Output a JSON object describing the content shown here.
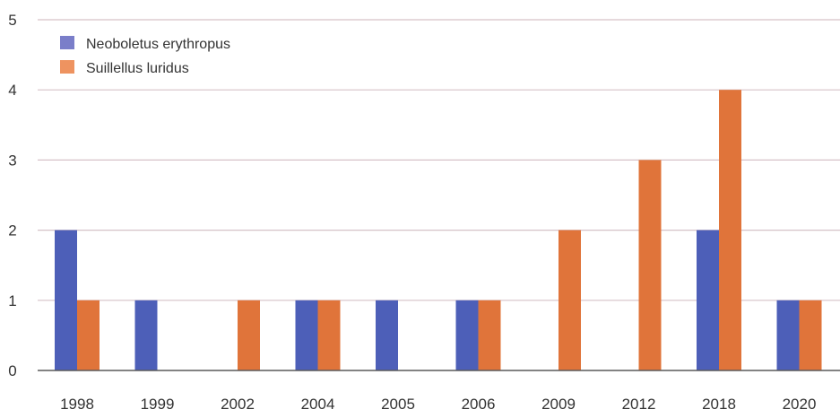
{
  "chart_data": {
    "type": "bar",
    "categories": [
      "1998",
      "1999",
      "2002",
      "2004",
      "2005",
      "2006",
      "2009",
      "2012",
      "2018",
      "2020"
    ],
    "series": [
      {
        "name": "Neoboletus erythropus",
        "color": "#4d5fb8",
        "values": [
          2,
          1,
          0,
          1,
          1,
          1,
          0,
          0,
          2,
          1
        ]
      },
      {
        "name": "Suillellus luridus",
        "color": "#e0743a",
        "values": [
          1,
          0,
          1,
          1,
          0,
          1,
          2,
          3,
          4,
          1
        ]
      }
    ],
    "yticks": [
      "0",
      "1",
      "2",
      "3",
      "4",
      "5"
    ],
    "ylim": [
      0,
      5
    ],
    "grid": true,
    "legend": "top-left"
  }
}
